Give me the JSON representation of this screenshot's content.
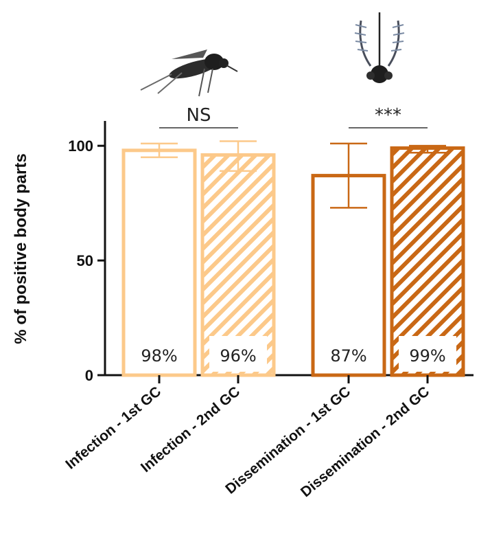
{
  "chart_data": {
    "type": "bar",
    "title": "",
    "xlabel": "",
    "ylabel": "% of positive body parts",
    "ylim": [
      0,
      110
    ],
    "yticks": [
      0,
      50,
      100
    ],
    "grid": false,
    "categories": [
      "Infection - 1st GC",
      "Infection - 2nd GC",
      "Dissemination - 1st GC",
      "Dissemination - 2nd GC"
    ],
    "values": [
      98,
      96,
      87,
      99
    ],
    "error_low": [
      95,
      89,
      73,
      97
    ],
    "error_high": [
      101,
      102,
      101,
      100
    ],
    "data_labels": [
      "98%",
      "96%",
      "87%",
      "99%"
    ],
    "patterns": [
      "solid",
      "hatched",
      "solid",
      "hatched"
    ],
    "colors": [
      "#fcc98a",
      "#fcc98a",
      "#c96815",
      "#c96815"
    ],
    "comparisons": [
      {
        "from": 0,
        "to": 1,
        "label": "NS"
      },
      {
        "from": 2,
        "to": 3,
        "label": "***"
      }
    ],
    "icons": [
      "mosquito-icon",
      "mosquito-head-icon"
    ]
  }
}
